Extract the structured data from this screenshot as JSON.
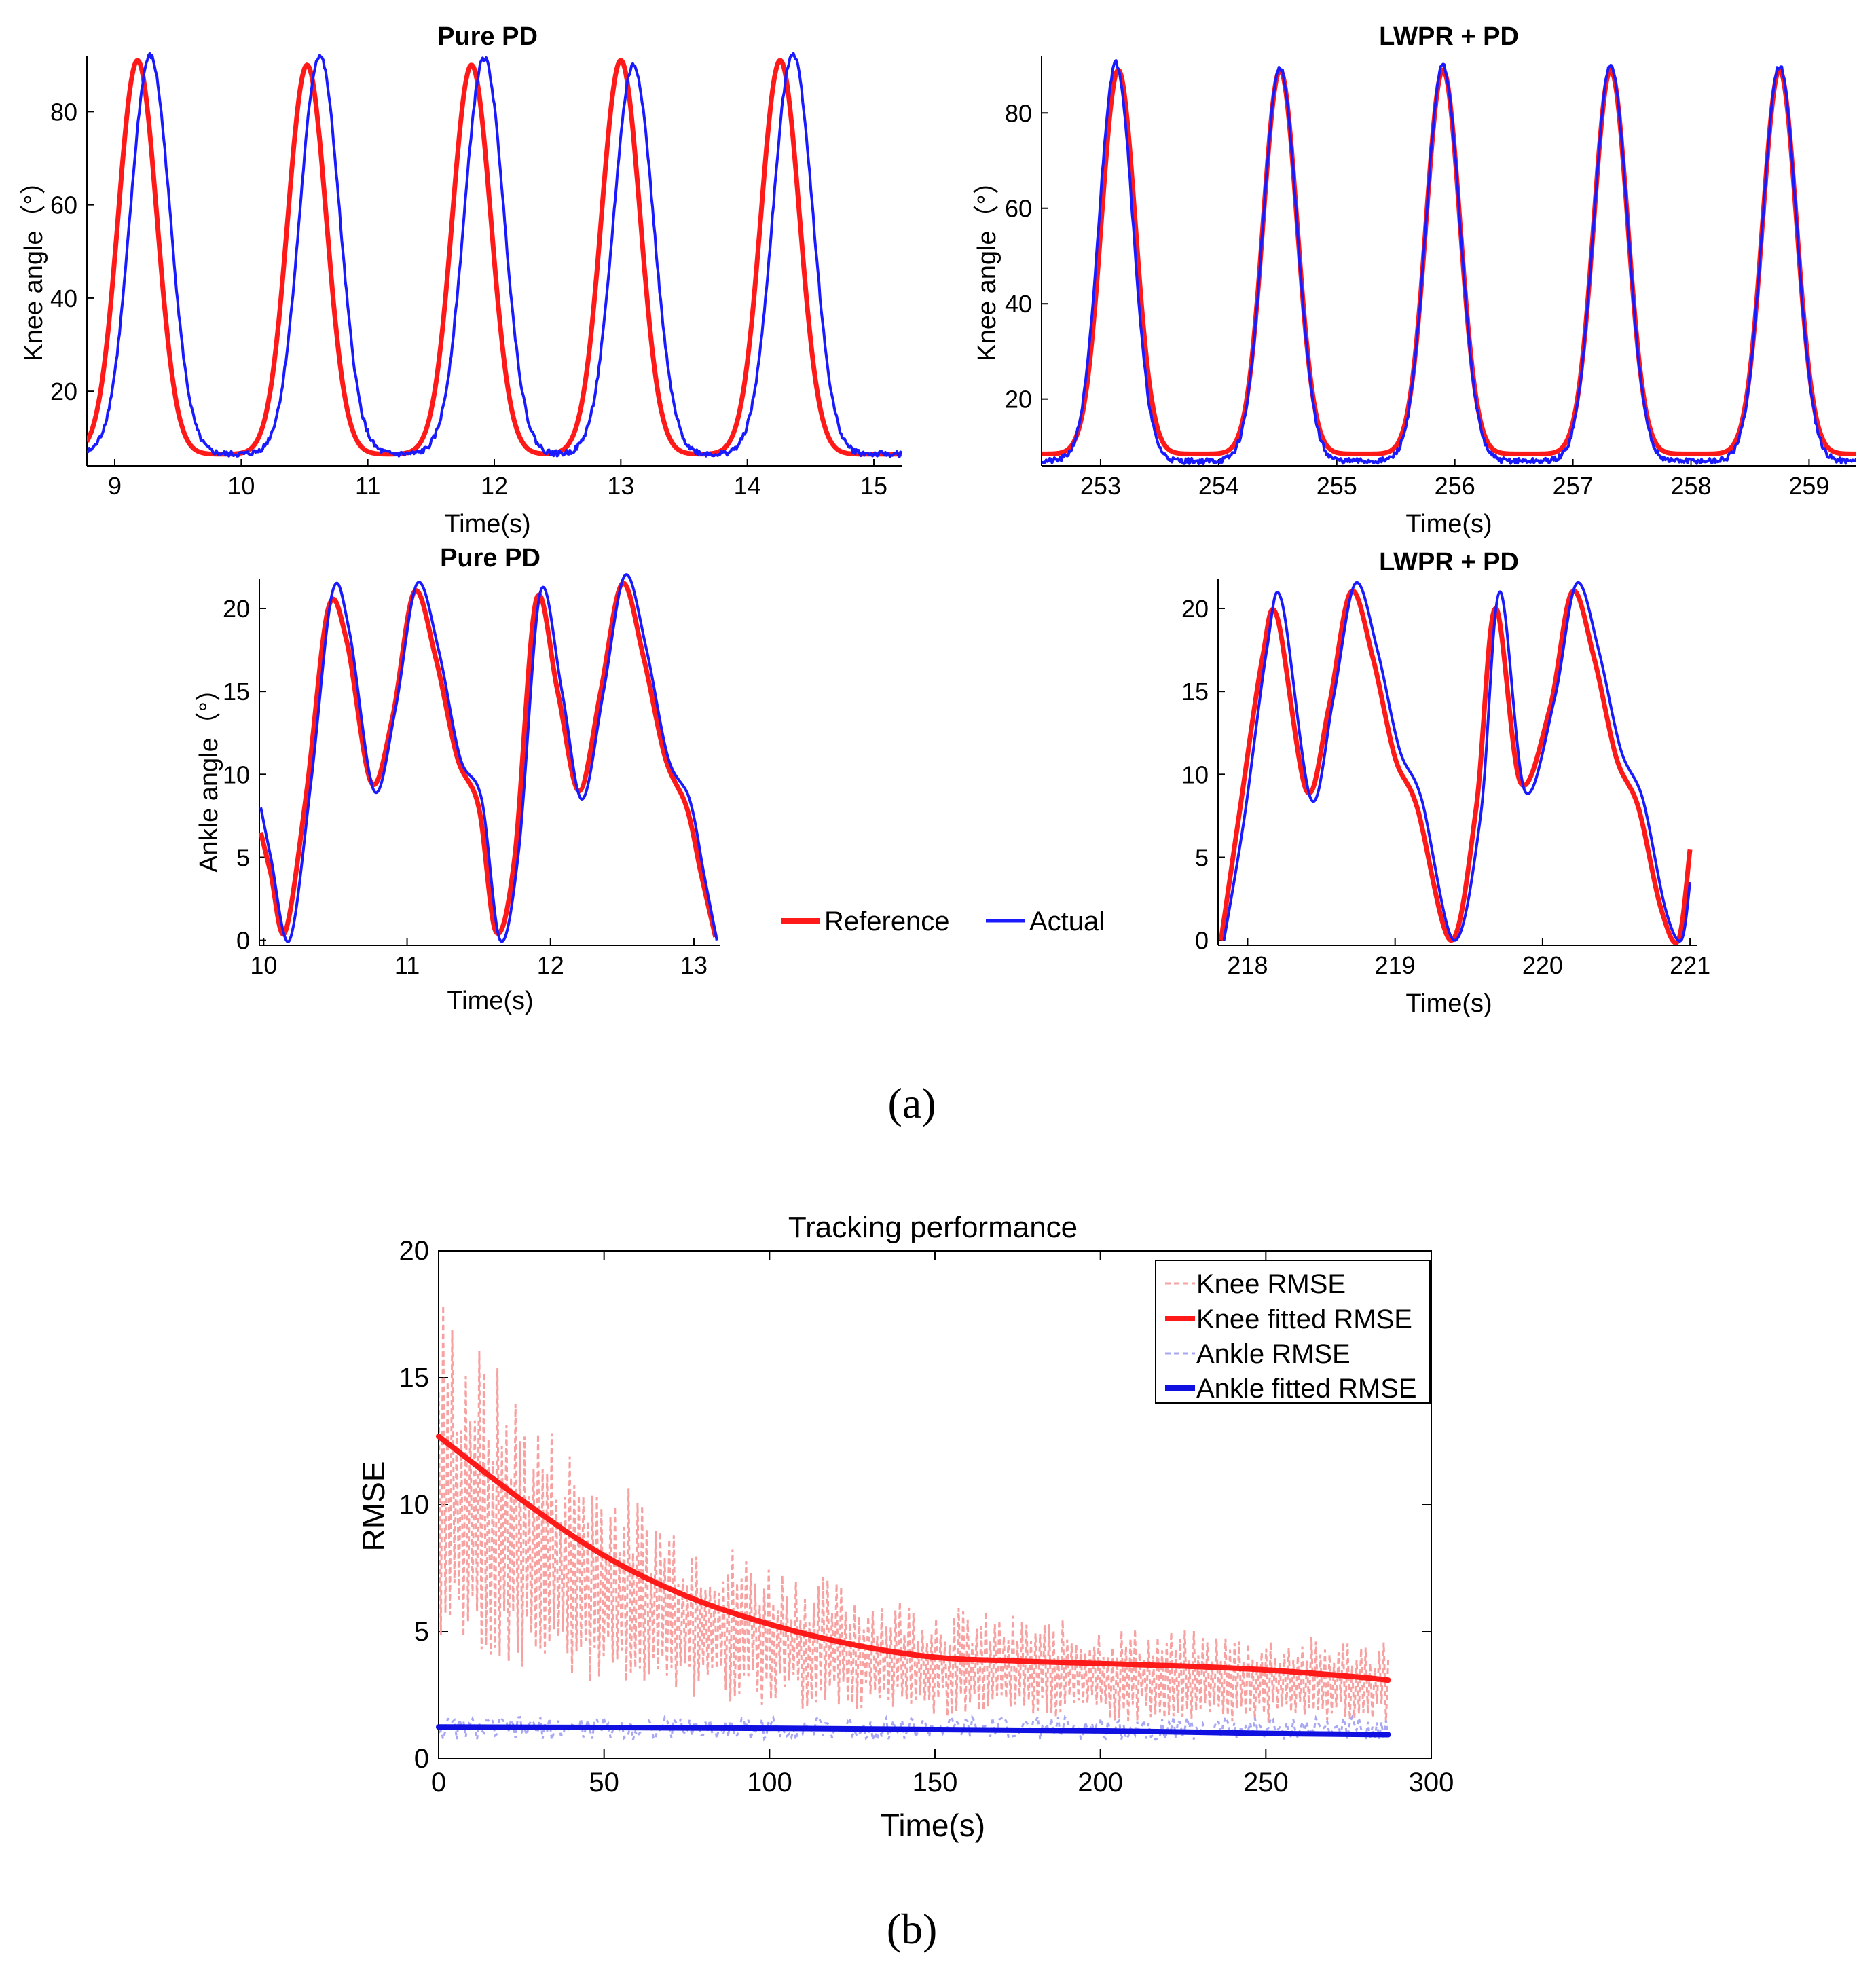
{
  "captions": {
    "a": "(a)",
    "b": "(b)"
  },
  "legend_top": {
    "reference": "Reference",
    "actual": "Actual"
  },
  "colors": {
    "reference": "#ff1a1a",
    "actual": "#1a1aff",
    "knee_rmse": "#f7a1a1",
    "ankle_rmse": "#a7a7f4",
    "knee_fit": "#ff1a1a",
    "ankle_fit": "#1010e0"
  },
  "chart_data": [
    {
      "id": "knee_pd",
      "type": "line",
      "title": "Pure PD",
      "xlabel": "Time(s)",
      "ylabel": "Knee angle（°）",
      "xlim": [
        8.78,
        15.22
      ],
      "ylim": [
        4,
        92
      ],
      "xticks": [
        9,
        10,
        11,
        12,
        13,
        14,
        15
      ],
      "yticks": [
        20,
        40,
        60,
        80
      ],
      "series": [
        {
          "name": "Reference",
          "peaks": [
            9.18,
            10.52,
            11.82,
            13.0,
            14.26
          ],
          "peak_values": [
            91,
            90,
            90,
            91,
            91
          ],
          "baseline": 6.5,
          "width": 0.32
        },
        {
          "name": "Actual",
          "peaks": [
            9.28,
            10.62,
            11.92,
            13.1,
            14.36
          ],
          "peak_values": [
            92,
            92,
            91.5,
            90,
            92.5
          ],
          "baseline": 6.5,
          "width": 0.33
        }
      ]
    },
    {
      "id": "knee_lwpr",
      "type": "line",
      "title": "LWPR + PD",
      "xlabel": "Time(s)",
      "ylabel": "Knee angle（°）",
      "xlim": [
        252.5,
        259.4
      ],
      "ylim": [
        6,
        92
      ],
      "xticks": [
        253,
        254,
        255,
        256,
        257,
        258,
        259
      ],
      "yticks": [
        20,
        40,
        60,
        80
      ],
      "series": [
        {
          "name": "Reference",
          "peaks": [
            253.15,
            254.52,
            255.9,
            257.32,
            258.75
          ],
          "peak_values": [
            89,
            89,
            89,
            89,
            89
          ],
          "baseline": 8.5,
          "width": 0.3
        },
        {
          "name": "Actual",
          "peaks": [
            253.13,
            254.52,
            255.9,
            257.32,
            258.75
          ],
          "peak_values": [
            90.5,
            89.5,
            90,
            90,
            90
          ],
          "baseline": 7,
          "width": 0.3
        }
      ]
    },
    {
      "id": "ankle_pd",
      "type": "line",
      "title": "Pure PD",
      "xlabel": "Time(s)",
      "ylabel": "Ankle angle（°）",
      "xlim": [
        9.97,
        13.18
      ],
      "ylim": [
        -0.3,
        21.8
      ],
      "xticks": [
        10,
        11,
        12,
        13
      ],
      "yticks": [
        0,
        5,
        10,
        15,
        20
      ],
      "series": [
        {
          "name": "Reference",
          "x": [
            9.98,
            10.05,
            10.15,
            10.3,
            10.45,
            10.58,
            10.75,
            10.9,
            11.05,
            11.2,
            11.35,
            11.5,
            11.62,
            11.75,
            11.9,
            12.05,
            12.2,
            12.35,
            12.5,
            12.65,
            12.8,
            12.95,
            13.05,
            13.15
          ],
          "y": [
            6.5,
            4,
            0.5,
            9,
            20,
            18,
            9.5,
            13.5,
            21,
            17,
            11,
            8,
            0.5,
            5,
            20.5,
            15,
            9,
            15,
            21.5,
            17,
            11,
            8,
            4,
            0.2
          ]
        },
        {
          "name": "Actual",
          "x": [
            9.98,
            10.05,
            10.18,
            10.33,
            10.48,
            10.6,
            10.77,
            10.92,
            11.07,
            11.22,
            11.37,
            11.52,
            11.65,
            11.78,
            11.93,
            12.08,
            12.22,
            12.37,
            12.52,
            12.67,
            12.82,
            12.97,
            13.07,
            13.16
          ],
          "y": [
            8,
            5,
            0,
            9.5,
            21,
            18.5,
            9,
            14,
            21.5,
            17.5,
            11,
            8.5,
            0,
            5.5,
            21,
            15,
            8.5,
            15,
            22,
            17.5,
            11,
            8.5,
            4,
            0
          ]
        }
      ]
    },
    {
      "id": "ankle_lwpr",
      "type": "line",
      "title": "LWPR + PD",
      "xlabel": "Time(s)",
      "ylabel": "",
      "xlim": [
        217.8,
        221.05
      ],
      "ylim": [
        -0.3,
        21.8
      ],
      "xticks": [
        218,
        219,
        220,
        221
      ],
      "yticks": [
        0,
        5,
        10,
        15,
        20
      ],
      "series": [
        {
          "name": "Reference",
          "x": [
            217.82,
            217.95,
            218.1,
            218.2,
            218.4,
            218.55,
            218.7,
            218.85,
            219.0,
            219.15,
            219.38,
            219.55,
            219.68,
            219.85,
            220.05,
            220.2,
            220.35,
            220.5,
            220.65,
            220.8,
            220.92,
            221.0
          ],
          "y": [
            0,
            8,
            17,
            19.5,
            9,
            14,
            21,
            17,
            11,
            8,
            0,
            8,
            20,
            9.5,
            14,
            21,
            17,
            11,
            8,
            2,
            0,
            5.5
          ]
        },
        {
          "name": "Actual",
          "x": [
            217.84,
            217.98,
            218.13,
            218.23,
            218.43,
            218.58,
            218.73,
            218.88,
            219.03,
            219.18,
            219.4,
            219.58,
            219.71,
            219.88,
            220.08,
            220.23,
            220.38,
            220.53,
            220.68,
            220.83,
            220.94,
            221.0
          ],
          "y": [
            0,
            7.5,
            17.5,
            20.5,
            8.5,
            14.5,
            21.5,
            17.5,
            11.5,
            8.5,
            0,
            7.5,
            21,
            9,
            14.5,
            21.5,
            17.5,
            11.5,
            8.5,
            2,
            0,
            3.5
          ]
        }
      ]
    },
    {
      "id": "rmse",
      "type": "line",
      "title": "Tracking performance",
      "xlabel": "Time(s)",
      "ylabel": "RMSE",
      "xlim": [
        0,
        300
      ],
      "ylim": [
        0,
        20
      ],
      "xticks": [
        0,
        50,
        100,
        150,
        200,
        250,
        300
      ],
      "yticks": [
        0,
        5,
        10,
        15,
        20
      ],
      "legend": [
        "Knee RMSE",
        "Knee fitted RMSE",
        "Ankle RMSE",
        "Ankle fitted RMSE"
      ],
      "legend_position": "top-right",
      "series": [
        {
          "name": "Knee RMSE",
          "style": "dashed",
          "x_range": [
            0,
            287
          ],
          "start_peak": 18.7,
          "start_low": 7.5,
          "end_peak": 4.5,
          "end_low": 2.2
        },
        {
          "name": "Knee fitted RMSE",
          "x": [
            0,
            25,
            50,
            75,
            100,
            125,
            150,
            175,
            200,
            225,
            250,
            275,
            287
          ],
          "y": [
            12.7,
            10.2,
            8.0,
            6.4,
            5.3,
            4.5,
            4.0,
            3.85,
            3.75,
            3.65,
            3.5,
            3.25,
            3.1
          ]
        },
        {
          "name": "Ankle RMSE",
          "style": "dashed",
          "x_range": [
            0,
            287
          ],
          "mean": 1.2,
          "spread": 0.45
        },
        {
          "name": "Ankle fitted RMSE",
          "x": [
            0,
            50,
            100,
            150,
            200,
            250,
            287
          ],
          "y": [
            1.25,
            1.23,
            1.2,
            1.15,
            1.1,
            1.0,
            0.95
          ]
        }
      ]
    }
  ]
}
